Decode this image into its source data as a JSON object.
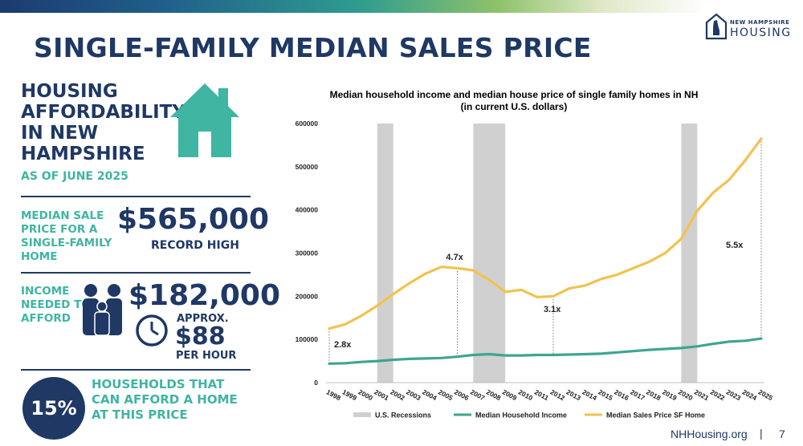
{
  "slide": {
    "title": "SINGLE-FAMILY MEDIAN SALES PRICE",
    "logo_top": "NEW HAMPSHIRE",
    "logo_bottom": "HOUSING",
    "footer_url": "NHHousing.org",
    "footer_sep": "|",
    "page_number": "7",
    "colors": {
      "navy": "#1f3864",
      "teal": "#3fb5a2",
      "gold": "#f2c24d",
      "recession": "#d0d0d0"
    }
  },
  "left_panel": {
    "heading": "HOUSING AFFORDABILITY IN NEW HAMPSHIRE",
    "subheading": "AS OF JUNE 2025",
    "house_icon": "house-icon",
    "median_label": "MEDIAN SALE PRICE FOR A SINGLE-FAMILY HOME",
    "median_value": "$565,000",
    "median_note": "RECORD HIGH",
    "income_label": "INCOME NEEDED TO AFFORD",
    "income_icon": "family-icon",
    "income_value": "$182,000",
    "clock_icon": "clock-icon",
    "approx_label": "APPROX.",
    "hourly_value": "$88",
    "hourly_unit": "PER HOUR",
    "share_value": "15%",
    "share_label": "HOUSEHOLDS THAT CAN AFFORD A HOME AT THIS PRICE"
  },
  "chart_data": {
    "type": "line",
    "title": "Median household income and median house price of single family homes in NH",
    "subtitle": "(in current U.S. dollars)",
    "x": [
      "1998",
      "1999",
      "2000",
      "2001",
      "2002",
      "2003",
      "2004",
      "2005",
      "2006",
      "2007",
      "2008",
      "2009",
      "2010",
      "2011",
      "2012",
      "2013",
      "2014",
      "2015",
      "2016",
      "2017",
      "2018",
      "2019",
      "2020",
      "2021",
      "2022",
      "2023",
      "2024",
      "2025"
    ],
    "ylim": [
      0,
      600000
    ],
    "yticks": [
      "0",
      "100000",
      "200000",
      "300000",
      "400000",
      "500000",
      "600000"
    ],
    "series": [
      {
        "name": "Median Household Income",
        "color": "#3fa592",
        "values": [
          44000,
          45000,
          48000,
          50000,
          53000,
          55000,
          56000,
          57000,
          60000,
          64000,
          66000,
          63000,
          63000,
          64000,
          64000,
          65000,
          66000,
          67000,
          70000,
          73000,
          76000,
          78000,
          80000,
          84000,
          90000,
          95000,
          97000,
          102000
        ]
      },
      {
        "name": "Median Sales Price SF Home",
        "color": "#f2c24d",
        "values": [
          125000,
          135000,
          155000,
          178000,
          205000,
          230000,
          252000,
          268000,
          265000,
          260000,
          238000,
          210000,
          215000,
          198000,
          200000,
          218000,
          225000,
          240000,
          250000,
          265000,
          280000,
          300000,
          333000,
          398000,
          440000,
          470000,
          515000,
          565000
        ]
      }
    ],
    "recessions": [
      [
        "2001",
        "2002"
      ],
      [
        "2007",
        "2009"
      ],
      [
        "2020",
        "2021"
      ]
    ],
    "legend": [
      {
        "label": "U.S. Recessions",
        "color": "#d0d0d0"
      },
      {
        "label": "Median Household Income",
        "color": "#3fa592"
      },
      {
        "label": "Median Sales Price SF Home",
        "color": "#f2c24d"
      }
    ],
    "legend_position": "bottom",
    "annotations": [
      {
        "text": "2.8x",
        "x": "1998"
      },
      {
        "text": "4.7x",
        "x": "2006"
      },
      {
        "text": "3.1x",
        "x": "2012"
      },
      {
        "text": "5.5x",
        "x": "2025"
      }
    ]
  }
}
